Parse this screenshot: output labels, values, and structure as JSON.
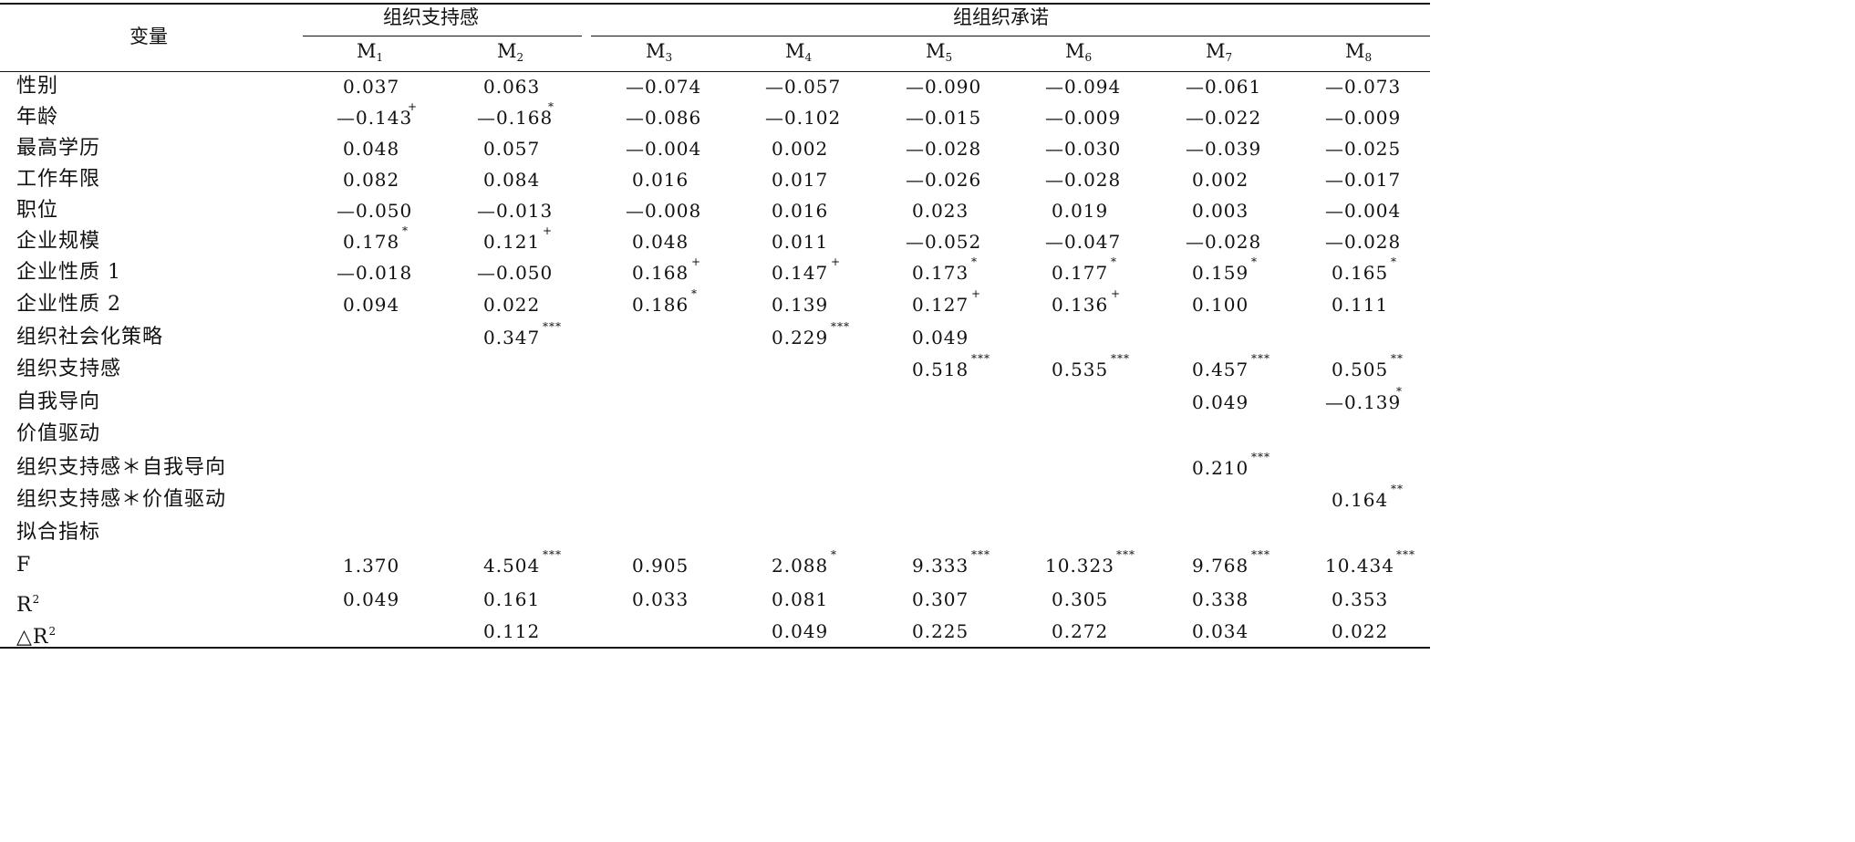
{
  "header": {
    "var_label": "变量",
    "groups": [
      "组织支持感",
      "组组织承诺"
    ],
    "models": [
      "M1",
      "M2",
      "M3",
      "M4",
      "M5",
      "M6",
      "M7",
      "M8"
    ]
  },
  "rows": [
    {
      "label": "性别",
      "cells": [
        [
          "0.037",
          ""
        ],
        [
          "0.063",
          ""
        ],
        [
          "—0.074",
          ""
        ],
        [
          "—0.057",
          ""
        ],
        [
          "—0.090",
          ""
        ],
        [
          "—0.094",
          ""
        ],
        [
          "—0.061",
          ""
        ],
        [
          "—0.073",
          ""
        ]
      ]
    },
    {
      "label": "年龄",
      "cells": [
        [
          "—0.143",
          "+"
        ],
        [
          "—0.168",
          "*"
        ],
        [
          "—0.086",
          ""
        ],
        [
          "—0.102",
          ""
        ],
        [
          "—0.015",
          ""
        ],
        [
          "—0.009",
          ""
        ],
        [
          "—0.022",
          ""
        ],
        [
          "—0.009",
          ""
        ]
      ]
    },
    {
      "label": "最高学历",
      "cells": [
        [
          "0.048",
          ""
        ],
        [
          "0.057",
          ""
        ],
        [
          "—0.004",
          ""
        ],
        [
          "0.002",
          ""
        ],
        [
          "—0.028",
          ""
        ],
        [
          "—0.030",
          ""
        ],
        [
          "—0.039",
          ""
        ],
        [
          "—0.025",
          ""
        ]
      ]
    },
    {
      "label": "工作年限",
      "cells": [
        [
          "0.082",
          ""
        ],
        [
          "0.084",
          ""
        ],
        [
          "0.016",
          ""
        ],
        [
          "0.017",
          ""
        ],
        [
          "—0.026",
          ""
        ],
        [
          "—0.028",
          ""
        ],
        [
          "0.002",
          ""
        ],
        [
          "—0.017",
          ""
        ]
      ]
    },
    {
      "label": "职位",
      "cells": [
        [
          "—0.050",
          ""
        ],
        [
          "—0.013",
          ""
        ],
        [
          "—0.008",
          ""
        ],
        [
          "0.016",
          ""
        ],
        [
          "0.023",
          ""
        ],
        [
          "0.019",
          ""
        ],
        [
          "0.003",
          ""
        ],
        [
          "—0.004",
          ""
        ]
      ]
    },
    {
      "label": "企业规模",
      "cells": [
        [
          "0.178",
          "*"
        ],
        [
          "0.121",
          "+"
        ],
        [
          "0.048",
          ""
        ],
        [
          "0.011",
          ""
        ],
        [
          "—0.052",
          ""
        ],
        [
          "—0.047",
          ""
        ],
        [
          "—0.028",
          ""
        ],
        [
          "—0.028",
          ""
        ]
      ]
    },
    {
      "label": "企业性质 1",
      "cells": [
        [
          "—0.018",
          ""
        ],
        [
          "—0.050",
          ""
        ],
        [
          "0.168",
          "+"
        ],
        [
          "0.147",
          "+"
        ],
        [
          "0.173",
          "*"
        ],
        [
          "0.177",
          "*"
        ],
        [
          "0.159",
          "*"
        ],
        [
          "0.165",
          "*"
        ]
      ]
    },
    {
      "label": "企业性质 2",
      "cells": [
        [
          "0.094",
          ""
        ],
        [
          "0.022",
          ""
        ],
        [
          "0.186",
          "*"
        ],
        [
          "0.139",
          ""
        ],
        [
          "0.127",
          "+"
        ],
        [
          "0.136",
          "+"
        ],
        [
          "0.100",
          ""
        ],
        [
          "0.111",
          ""
        ]
      ]
    },
    {
      "label": "组织社会化策略",
      "cells": [
        [
          "",
          ""
        ],
        [
          "0.347",
          "***"
        ],
        [
          "",
          ""
        ],
        [
          "0.229",
          "***"
        ],
        [
          "0.049",
          ""
        ],
        [
          "",
          ""
        ],
        [
          "",
          ""
        ],
        [
          "",
          ""
        ]
      ]
    },
    {
      "label": "组织支持感",
      "cells": [
        [
          "",
          ""
        ],
        [
          "",
          ""
        ],
        [
          "",
          ""
        ],
        [
          "",
          ""
        ],
        [
          "0.518",
          "***"
        ],
        [
          "0.535",
          "***"
        ],
        [
          "0.457",
          "***"
        ],
        [
          "0.505",
          "**"
        ]
      ]
    },
    {
      "label": "自我导向",
      "cells": [
        [
          "",
          ""
        ],
        [
          "",
          ""
        ],
        [
          "",
          ""
        ],
        [
          "",
          ""
        ],
        [
          "",
          ""
        ],
        [
          "",
          ""
        ],
        [
          "0.049",
          ""
        ],
        [
          "—0.139",
          "*"
        ]
      ]
    },
    {
      "label": "价值驱动",
      "cells": [
        [
          "",
          ""
        ],
        [
          "",
          ""
        ],
        [
          "",
          ""
        ],
        [
          "",
          ""
        ],
        [
          "",
          ""
        ],
        [
          "",
          ""
        ],
        [
          "",
          ""
        ],
        [
          "",
          ""
        ]
      ]
    },
    {
      "label": "组织支持感＊自我导向",
      "cells": [
        [
          "",
          ""
        ],
        [
          "",
          ""
        ],
        [
          "",
          ""
        ],
        [
          "",
          ""
        ],
        [
          "",
          ""
        ],
        [
          "",
          ""
        ],
        [
          "0.210",
          "***"
        ],
        [
          "",
          ""
        ]
      ]
    },
    {
      "label": "组织支持感＊价值驱动",
      "cells": [
        [
          "",
          ""
        ],
        [
          "",
          ""
        ],
        [
          "",
          ""
        ],
        [
          "",
          ""
        ],
        [
          "",
          ""
        ],
        [
          "",
          ""
        ],
        [
          "",
          ""
        ],
        [
          "0.164",
          "**"
        ]
      ]
    },
    {
      "label": "拟合指标",
      "cells": [
        [
          "",
          ""
        ],
        [
          "",
          ""
        ],
        [
          "",
          ""
        ],
        [
          "",
          ""
        ],
        [
          "",
          ""
        ],
        [
          "",
          ""
        ],
        [
          "",
          ""
        ],
        [
          "",
          ""
        ]
      ]
    },
    {
      "label": "F",
      "cells": [
        [
          "1.370",
          ""
        ],
        [
          "4.504",
          "***"
        ],
        [
          "0.905",
          ""
        ],
        [
          "2.088",
          "*"
        ],
        [
          "9.333",
          "***"
        ],
        [
          "10.323",
          "***"
        ],
        [
          "9.768",
          "***"
        ],
        [
          "10.434",
          "***"
        ]
      ]
    },
    {
      "label": "R2",
      "cells": [
        [
          "0.049",
          ""
        ],
        [
          "0.161",
          ""
        ],
        [
          "0.033",
          ""
        ],
        [
          "0.081",
          ""
        ],
        [
          "0.307",
          ""
        ],
        [
          "0.305",
          ""
        ],
        [
          "0.338",
          ""
        ],
        [
          "0.353",
          ""
        ]
      ]
    },
    {
      "label": "△R2",
      "cells": [
        [
          "",
          ""
        ],
        [
          "0.112",
          ""
        ],
        [
          "",
          ""
        ],
        [
          "0.049",
          ""
        ],
        [
          "0.225",
          ""
        ],
        [
          "0.272",
          ""
        ],
        [
          "0.034",
          ""
        ],
        [
          "0.022",
          ""
        ]
      ]
    }
  ]
}
